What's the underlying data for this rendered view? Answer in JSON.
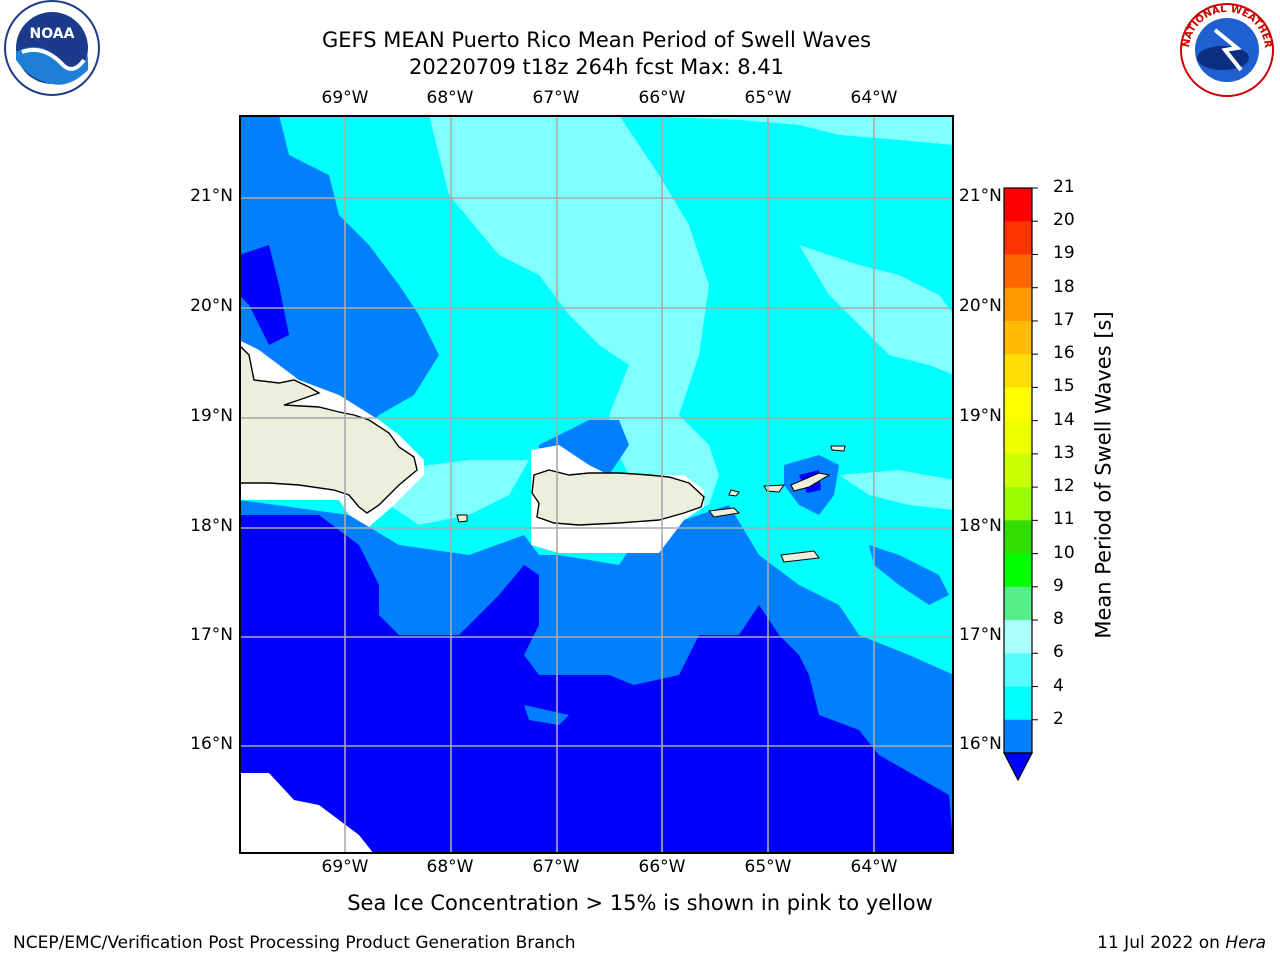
{
  "title": {
    "line1": "GEFS MEAN Puerto Rico Mean Period of Swell Waves",
    "line2": "20220709 t18z 264h fcst   Max: 8.41"
  },
  "map": {
    "lon_labels": [
      "69°W",
      "68°W",
      "67°W",
      "66°W",
      "65°W",
      "64°W"
    ],
    "lat_labels": [
      "21°N",
      "20°N",
      "19°N",
      "18°N",
      "17°N",
      "16°N"
    ],
    "colors": {
      "band_2_4": "#0000ff",
      "band_4_6": "#0080ff",
      "band_6_8": "#00ffff",
      "band_8_9": "#80ffff",
      "land": "#eeeedc",
      "grid": "#aaaaaa"
    }
  },
  "colorbar": {
    "title": "Mean Period of Swell Waves [s]",
    "ticks": [
      "21",
      "20",
      "19",
      "18",
      "17",
      "16",
      "15",
      "14",
      "13",
      "12",
      "11",
      "10",
      "9",
      "8",
      "6",
      "4",
      "2"
    ],
    "colors": [
      "#ff0000",
      "#ff3300",
      "#ff6600",
      "#ff9900",
      "#ffbb00",
      "#ffdd00",
      "#ffff00",
      "#eeff00",
      "#ccff00",
      "#99ff00",
      "#33dd00",
      "#00ff00",
      "#55ee88",
      "#aaffff",
      "#55ffff",
      "#00ffff",
      "#0080ff",
      "#0000ff"
    ]
  },
  "subtitle": "Sea Ice Concentration > 15% is shown in pink to yellow",
  "footer": {
    "left": "NCEP/EMC/Verification Post Processing Product Generation Branch",
    "right_date": "11 Jul 2022 on ",
    "right_host": "Hera"
  },
  "logos": {
    "noaa": "NOAA",
    "nws": "NATIONAL WEATHER SERVICE"
  }
}
